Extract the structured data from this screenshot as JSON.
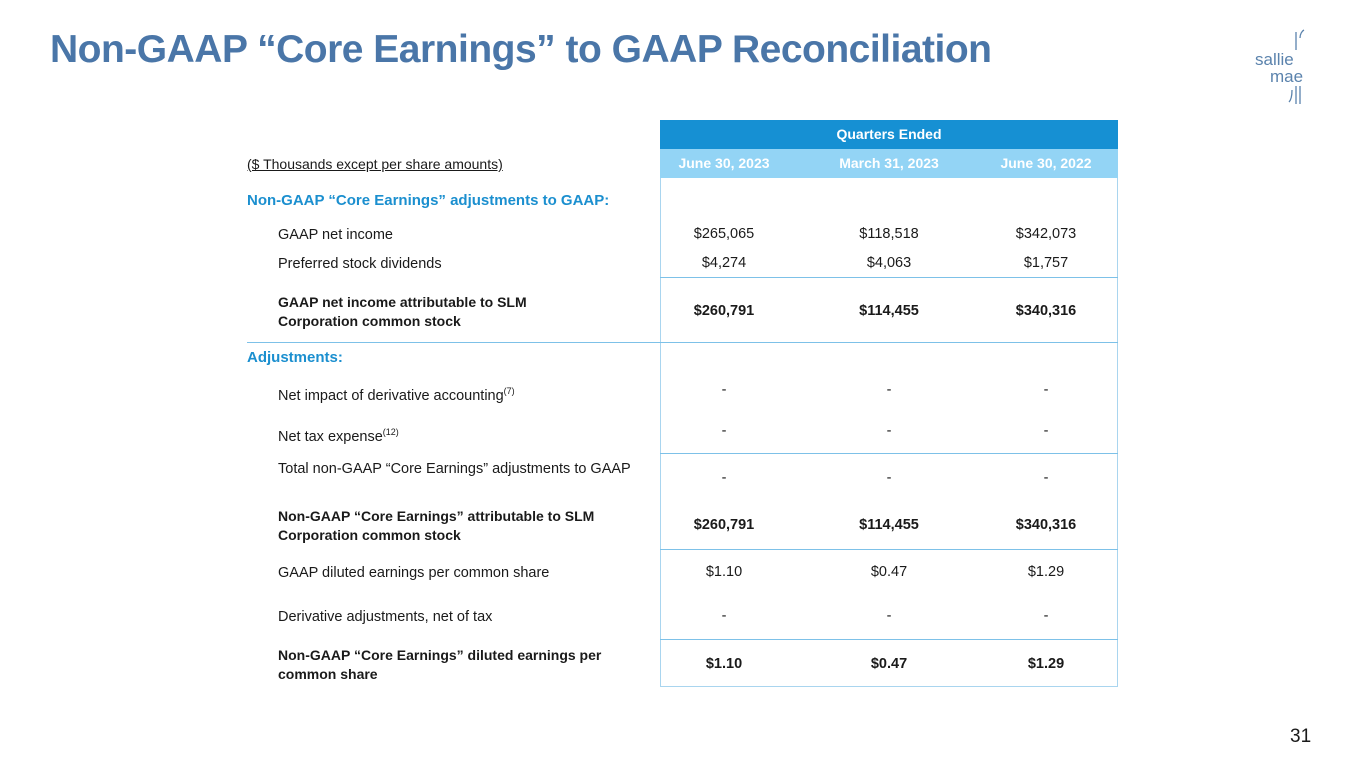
{
  "title": "Non-GAAP “Core Earnings” to GAAP Reconciliation",
  "logo": {
    "line1": "sallie",
    "line2": "mae"
  },
  "table": {
    "group_header": "Quarters Ended",
    "units": "($ Thousands except per share amounts)",
    "columns": [
      "June 30, 2023",
      "March 31, 2023",
      "June 30, 2022"
    ],
    "section1": "Non-GAAP “Core Earnings” adjustments to GAAP:",
    "section2": "Adjustments:",
    "rows": [
      {
        "label": "GAAP net income",
        "values": [
          "$265,065",
          "$118,518",
          "$342,073"
        ]
      },
      {
        "label": "Preferred stock dividends",
        "values": [
          "$4,274",
          "$4,063",
          "$1,757"
        ]
      },
      {
        "label": "GAAP net income attributable to SLM Corporation common stock",
        "values": [
          "$260,791",
          "$114,455",
          "$340,316"
        ]
      },
      {
        "label": "Net impact of derivative accounting",
        "sup": "(7)",
        "values": [
          "-",
          "-",
          "-"
        ]
      },
      {
        "label": "Net tax expense",
        "sup": "(12)",
        "values": [
          "-",
          "-",
          "-"
        ]
      },
      {
        "label": "Total non-GAAP “Core Earnings” adjustments to GAAP",
        "values": [
          "-",
          "-",
          "-"
        ]
      },
      {
        "label": "Non-GAAP “Core Earnings” attributable to SLM Corporation common stock",
        "values": [
          "$260,791",
          "$114,455",
          "$340,316"
        ]
      },
      {
        "label": "GAAP diluted earnings per common share",
        "values": [
          "$1.10",
          "$0.47",
          "$1.29"
        ]
      },
      {
        "label": "Derivative adjustments, net of tax",
        "values": [
          "-",
          "-",
          "-"
        ]
      },
      {
        "label": "Non-GAAP “Core Earnings” diluted earnings per common share",
        "values": [
          "$1.10",
          "$0.47",
          "$1.29"
        ]
      }
    ]
  },
  "page_number": "31"
}
